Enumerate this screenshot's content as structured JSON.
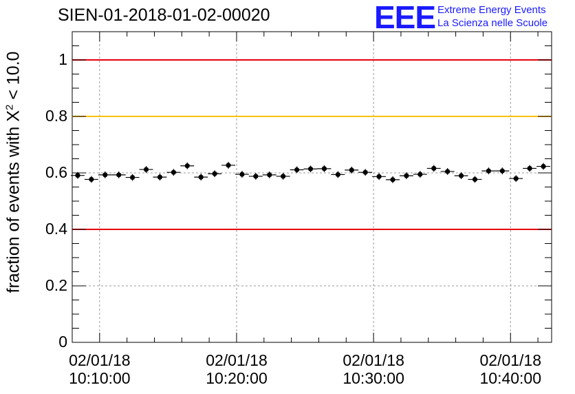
{
  "title": "SIEN-01-2018-01-02-00020",
  "logo": {
    "mark": "EEE",
    "line1": "Extreme Energy Events",
    "line2": "La Scienza nelle Scuole",
    "color": "#1a1aff"
  },
  "chart_data": {
    "type": "scatter",
    "title": "SIEN-01-2018-01-02-00020",
    "ylabel_prefix": "fraction of events with ",
    "ylabel_symbol": "X",
    "ylabel_exp": "2",
    "ylabel_suffix": " < 10.0",
    "ylim": [
      0,
      1.1
    ],
    "yticks": [
      {
        "value": 0,
        "label": "0"
      },
      {
        "value": 0.2,
        "label": "0.2"
      },
      {
        "value": 0.4,
        "label": "0.4"
      },
      {
        "value": 0.6,
        "label": "0.6"
      },
      {
        "value": 0.8,
        "label": "0.8"
      },
      {
        "value": 1,
        "label": "1"
      }
    ],
    "xlim_minutes": [
      8.0,
      43.0
    ],
    "xticks": [
      {
        "value": 10,
        "date": "02/01/18",
        "time": "10:10:00"
      },
      {
        "value": 20,
        "date": "02/01/18",
        "time": "10:20:00"
      },
      {
        "value": 30,
        "date": "02/01/18",
        "time": "10:30:00"
      },
      {
        "value": 40,
        "date": "02/01/18",
        "time": "10:40:00"
      }
    ],
    "reference_lines": [
      {
        "value": 1.0,
        "color": "#e8000b"
      },
      {
        "value": 0.8,
        "color": "#ffc000"
      },
      {
        "value": 0.4,
        "color": "#e8000b"
      }
    ],
    "bin_width_minutes": 1.0,
    "x": [
      8.4,
      9.4,
      10.4,
      11.4,
      12.4,
      13.4,
      14.4,
      15.4,
      16.4,
      17.4,
      18.4,
      19.4,
      20.4,
      21.4,
      22.4,
      23.4,
      24.4,
      25.4,
      26.4,
      27.4,
      28.4,
      29.4,
      30.4,
      31.4,
      32.4,
      33.4,
      34.4,
      35.4,
      36.4,
      37.4,
      38.4,
      39.4,
      40.4,
      41.4,
      42.4
    ],
    "values": [
      0.591,
      0.577,
      0.593,
      0.593,
      0.584,
      0.612,
      0.585,
      0.602,
      0.625,
      0.585,
      0.597,
      0.627,
      0.595,
      0.588,
      0.593,
      0.588,
      0.611,
      0.614,
      0.615,
      0.594,
      0.61,
      0.602,
      0.587,
      0.576,
      0.59,
      0.595,
      0.616,
      0.605,
      0.59,
      0.577,
      0.607,
      0.607,
      0.58,
      0.616,
      0.623
    ],
    "errors": [
      0.012,
      0.012,
      0.012,
      0.012,
      0.012,
      0.012,
      0.012,
      0.012,
      0.012,
      0.012,
      0.012,
      0.012,
      0.012,
      0.012,
      0.012,
      0.012,
      0.012,
      0.012,
      0.012,
      0.012,
      0.012,
      0.012,
      0.012,
      0.012,
      0.012,
      0.012,
      0.012,
      0.012,
      0.012,
      0.012,
      0.012,
      0.012,
      0.012,
      0.012,
      0.012
    ],
    "grid": true,
    "marker_color": "#000000"
  }
}
